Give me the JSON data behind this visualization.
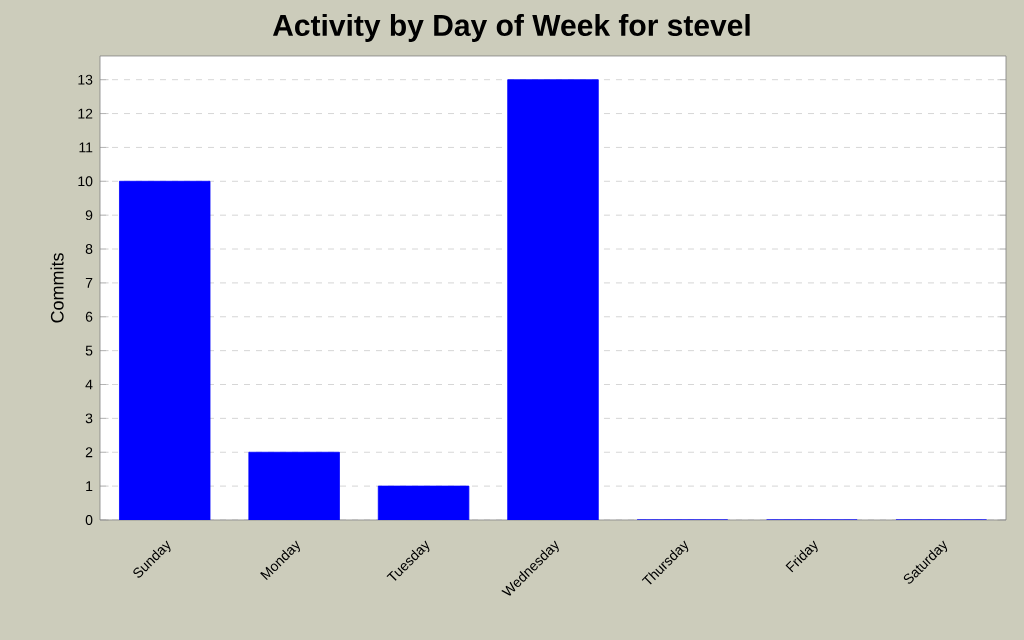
{
  "chart_data": {
    "type": "bar",
    "title": "Activity by Day of Week for stevel",
    "ylabel": "Commits",
    "categories": [
      "Sunday",
      "Monday",
      "Tuesday",
      "Wednesday",
      "Thursday",
      "Friday",
      "Saturday"
    ],
    "values": [
      10,
      2,
      1,
      13,
      0,
      0,
      0
    ],
    "color": "#0000ff",
    "ylim": [
      0,
      13.7
    ],
    "yticks": [
      0,
      1,
      2,
      3,
      4,
      5,
      6,
      7,
      8,
      9,
      10,
      11,
      12,
      13
    ],
    "grid": "y"
  }
}
